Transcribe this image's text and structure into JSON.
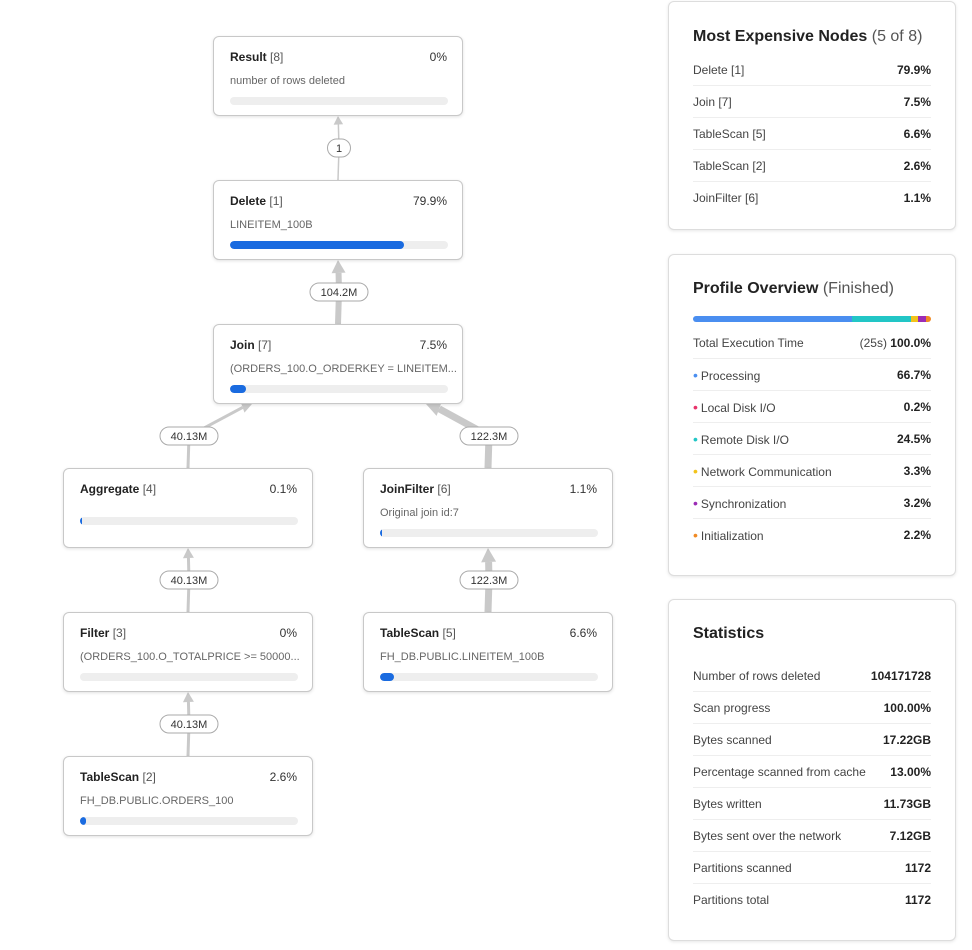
{
  "nodes": [
    {
      "name": "Result",
      "id": "[8]",
      "pct": {
        "value": 0,
        "label": "0%"
      },
      "detail": "number of rows deleted"
    },
    {
      "name": "Delete",
      "id": "[1]",
      "pct": {
        "value": 79.9,
        "label": "79.9%"
      },
      "detail": "LINEITEM_100B"
    },
    {
      "name": "Join",
      "id": "[7]",
      "pct": {
        "value": 7.5,
        "label": "7.5%"
      },
      "detail": "(ORDERS_100.O_ORDERKEY = LINEITEM..."
    },
    {
      "name": "Aggregate",
      "id": "[4]",
      "pct": {
        "value": 0.1,
        "label": "0.1%"
      }
    },
    {
      "name": "JoinFilter",
      "id": "[6]",
      "pct": {
        "value": 1.1,
        "label": "1.1%"
      },
      "detail": "Original join id:7"
    },
    {
      "name": "Filter",
      "id": "[3]",
      "pct": {
        "value": 0,
        "label": "0%"
      },
      "detail": "(ORDERS_100.O_TOTALPRICE >= 50000..."
    },
    {
      "name": "TableScan",
      "id": "[5]",
      "pct": {
        "value": 6.6,
        "label": "6.6%"
      },
      "detail": "FH_DB.PUBLIC.LINEITEM_100B"
    },
    {
      "name": "TableScan",
      "id": "[2]",
      "pct": {
        "value": 2.6,
        "label": "2.6%"
      },
      "detail": "FH_DB.PUBLIC.ORDERS_100"
    }
  ],
  "edges": [
    {
      "label": "1"
    },
    {
      "label": "104.2M"
    },
    {
      "label": "40.13M"
    },
    {
      "label": "122.3M"
    },
    {
      "label": "40.13M"
    },
    {
      "label": "122.3M"
    },
    {
      "label": "40.13M"
    }
  ],
  "expensive": {
    "title": "Most Expensive Nodes",
    "count": "(5 of 8)",
    "rows": [
      [
        "Delete [1]",
        "79.9%"
      ],
      [
        "Join [7]",
        "7.5%"
      ],
      [
        "TableScan [5]",
        "6.6%"
      ],
      [
        "TableScan [2]",
        "2.6%"
      ],
      [
        "JoinFilter [6]",
        "1.1%"
      ]
    ]
  },
  "overview": {
    "title": "Profile Overview",
    "status": "(Finished)",
    "total": {
      "label": "Total Execution Time",
      "time": "(25s)",
      "pct": "100.0%"
    },
    "items": [
      {
        "name": "Processing",
        "color": "#4a8ef0",
        "pct": {
          "value": 66.7,
          "label": "66.7%"
        }
      },
      {
        "name": "Local Disk I/O",
        "color": "#e8336b",
        "pct": {
          "value": 0.2,
          "label": "0.2%"
        }
      },
      {
        "name": "Remote Disk I/O",
        "color": "#22c6c6",
        "pct": {
          "value": 24.5,
          "label": "24.5%"
        }
      },
      {
        "name": "Network Communication",
        "color": "#f2c31b",
        "pct": {
          "value": 3.3,
          "label": "3.3%"
        }
      },
      {
        "name": "Synchronization",
        "color": "#9b2cb5",
        "pct": {
          "value": 3.2,
          "label": "3.2%"
        }
      },
      {
        "name": "Initialization",
        "color": "#f08a24",
        "pct": {
          "value": 2.2,
          "label": "2.2%"
        }
      }
    ]
  },
  "statistics": {
    "title": "Statistics",
    "rows": [
      [
        "Number of rows deleted",
        "104171728"
      ],
      [
        "Scan progress",
        "100.00%"
      ],
      [
        "Bytes scanned",
        "17.22GB"
      ],
      [
        "Percentage scanned from cache",
        "13.00%"
      ],
      [
        "Bytes written",
        "11.73GB"
      ],
      [
        "Bytes sent over the network",
        "7.12GB"
      ],
      [
        "Partitions scanned",
        "1172"
      ],
      [
        "Partitions total",
        "1172"
      ]
    ]
  }
}
